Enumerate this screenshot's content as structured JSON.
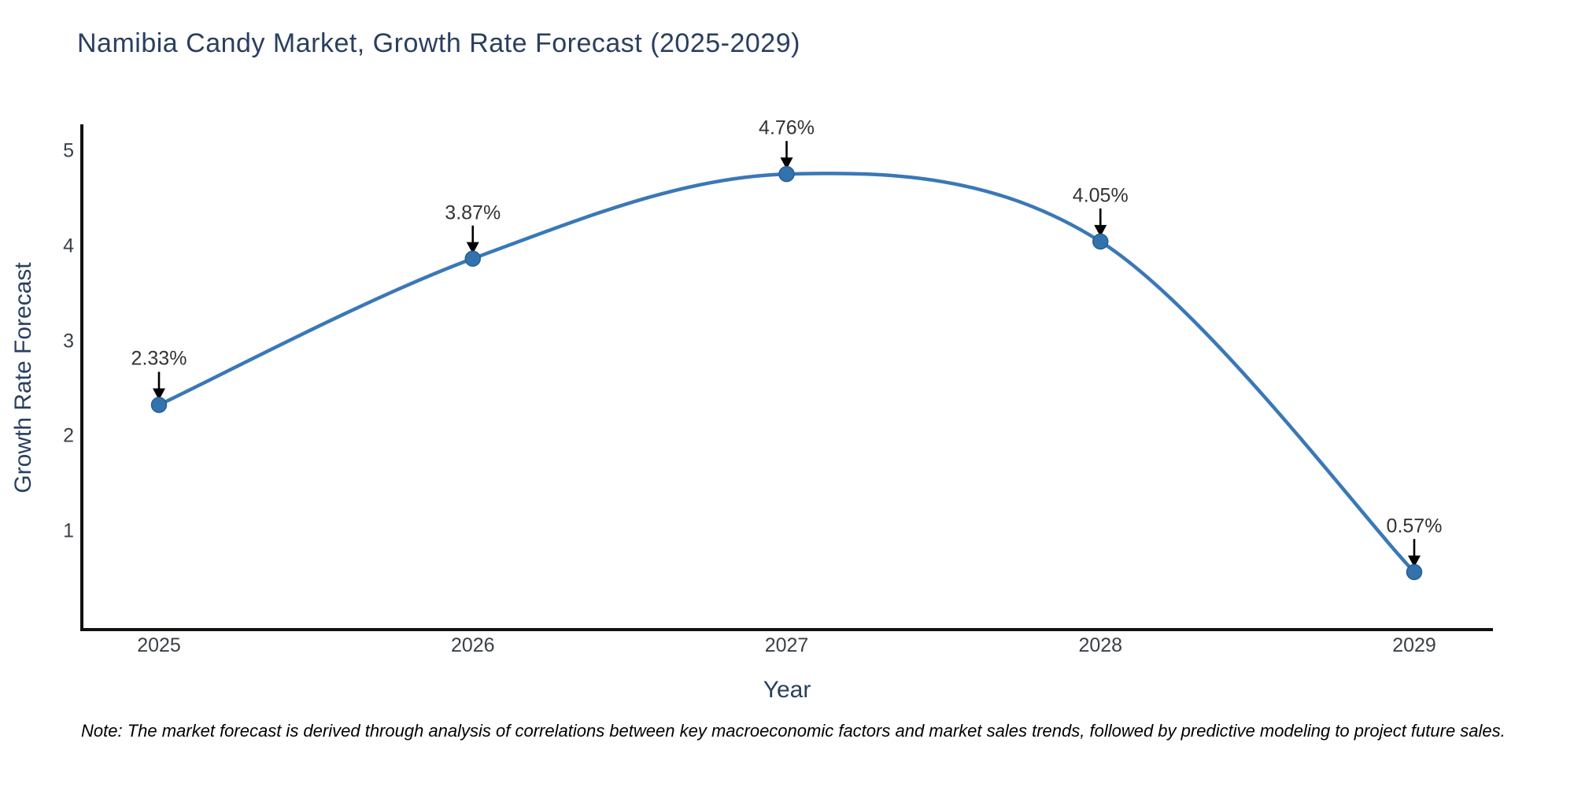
{
  "chart_data": {
    "type": "line",
    "title": "Namibia Candy Market, Growth Rate Forecast (2025-2029)",
    "x": [
      2025,
      2026,
      2027,
      2028,
      2029
    ],
    "values": [
      2.33,
      3.87,
      4.76,
      4.05,
      0.57
    ],
    "point_labels": [
      "2.33%",
      "3.87%",
      "4.76%",
      "4.05%",
      "0.57%"
    ],
    "xlabel": "Year",
    "ylabel": "Growth Rate Forecast",
    "yticks": [
      5,
      4,
      3,
      2,
      1
    ],
    "ylim": [
      0,
      5.3
    ],
    "xlim": [
      2024.75,
      2029.25
    ],
    "line_shape": "spline",
    "markers": true,
    "grid": false,
    "legend": false,
    "annotations": "each point labeled with percent and black down arrow",
    "note": "Note: The market forecast is derived through analysis of correlations between key macroeconomic factors and market sales trends, followed by predictive modeling to project future sales.",
    "colors": {
      "line": "#3a78b6",
      "marker": "#3273ae",
      "marker_edge": "#275e92",
      "axis": "#111111",
      "title_text": "#2a3f5f",
      "axis_label_text": "#2a3f5f",
      "tick_text": "#3b4048",
      "annotation_text": "#333333",
      "arrow": "#000000",
      "background": "#ffffff"
    }
  }
}
